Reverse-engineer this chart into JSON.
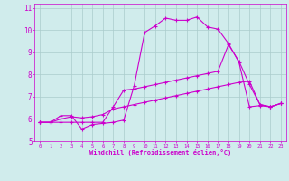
{
  "title": "",
  "xlabel": "Windchill (Refroidissement éolien,°C)",
  "bg_color": "#d0ecec",
  "grid_color": "#aacccc",
  "line_color": "#cc00cc",
  "dark_line_color": "#660066",
  "xlim": [
    -0.5,
    23.5
  ],
  "ylim": [
    5,
    11.2
  ],
  "xticks": [
    0,
    1,
    2,
    3,
    4,
    5,
    6,
    7,
    8,
    9,
    10,
    11,
    12,
    13,
    14,
    15,
    16,
    17,
    18,
    19,
    20,
    21,
    22,
    23
  ],
  "yticks": [
    5,
    6,
    7,
    8,
    9,
    10,
    11
  ],
  "series1_x": [
    0,
    1,
    2,
    3,
    4,
    5,
    6,
    7,
    8,
    9,
    10,
    11,
    12,
    13,
    14,
    15,
    16,
    17,
    18,
    19,
    20,
    21,
    22,
    23
  ],
  "series1_y": [
    5.85,
    5.85,
    6.15,
    6.15,
    5.55,
    5.75,
    5.8,
    5.85,
    5.95,
    7.5,
    9.9,
    10.2,
    10.55,
    10.45,
    10.45,
    10.6,
    10.15,
    10.05,
    9.4,
    8.55,
    6.55,
    6.6,
    6.55,
    6.7
  ],
  "series2_x": [
    0,
    1,
    2,
    3,
    4,
    5,
    6,
    7,
    8,
    9,
    10,
    11,
    12,
    13,
    14,
    15,
    16,
    17,
    18,
    19,
    20,
    21,
    22,
    23
  ],
  "series2_y": [
    5.85,
    5.85,
    6.0,
    6.1,
    6.05,
    6.1,
    6.2,
    6.45,
    6.55,
    6.65,
    6.75,
    6.85,
    6.95,
    7.05,
    7.15,
    7.25,
    7.35,
    7.45,
    7.55,
    7.65,
    7.7,
    6.65,
    6.55,
    6.7
  ],
  "series3_x": [
    0,
    1,
    2,
    3,
    4,
    5,
    6,
    7,
    8,
    9,
    10,
    11,
    12,
    13,
    14,
    15,
    16,
    17,
    18,
    19,
    20,
    21,
    22,
    23
  ],
  "series3_y": [
    5.85,
    5.85,
    5.85,
    5.85,
    5.85,
    5.85,
    5.85,
    6.55,
    7.3,
    7.35,
    7.45,
    7.55,
    7.65,
    7.75,
    7.85,
    7.95,
    8.05,
    8.15,
    9.35,
    8.6,
    7.55,
    6.65,
    6.55,
    6.7
  ]
}
